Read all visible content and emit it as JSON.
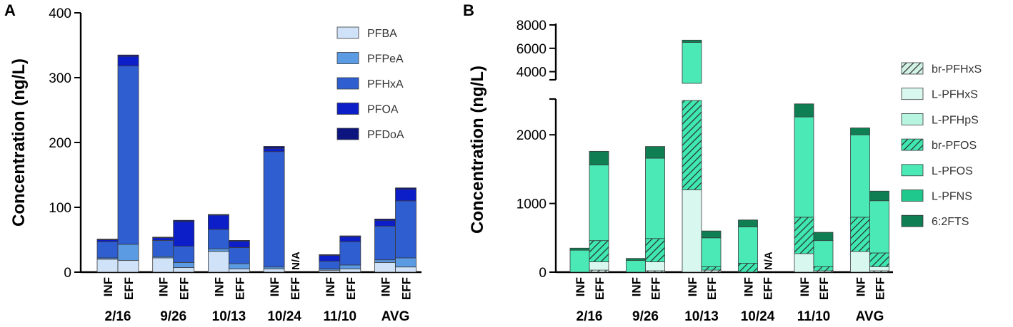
{
  "chart_data": [
    {
      "panel": "A",
      "type": "bar",
      "stacked": true,
      "ylabel": "Concentration (ng/L)",
      "ylim": [
        0,
        400
      ],
      "yticks": [
        0,
        100,
        200,
        300,
        400
      ],
      "groups": [
        "2/16",
        "9/26",
        "10/13",
        "10/24",
        "11/10",
        "AVG"
      ],
      "subcategories": [
        "INF",
        "EFF"
      ],
      "na_label": "N/A",
      "legend": {
        "position": "top-right"
      },
      "series": [
        {
          "name": "PFBA",
          "color": "#cfe2f7",
          "values": [
            [
              20,
              18
            ],
            [
              22,
              7
            ],
            [
              32,
              5
            ],
            [
              5,
              null
            ],
            [
              3,
              5
            ],
            [
              15,
              8
            ]
          ]
        },
        {
          "name": "PFPeA",
          "color": "#5b9be3",
          "values": [
            [
              2,
              25
            ],
            [
              2,
              8
            ],
            [
              4,
              8
            ],
            [
              3,
              null
            ],
            [
              2,
              6
            ],
            [
              4,
              14
            ]
          ]
        },
        {
          "name": "PFHxA",
          "color": "#2f5ed1",
          "values": [
            [
              25,
              275
            ],
            [
              25,
              25
            ],
            [
              30,
              25
            ],
            [
              178,
              null
            ],
            [
              12,
              36
            ],
            [
              52,
              88
            ]
          ]
        },
        {
          "name": "PFOA",
          "color": "#0c1ec7",
          "values": [
            [
              3,
              15
            ],
            [
              4,
              38
            ],
            [
              22,
              10
            ],
            [
              5,
              null
            ],
            [
              9,
              8
            ],
            [
              9,
              18
            ]
          ]
        },
        {
          "name": "PFDoA",
          "color": "#0c1480",
          "values": [
            [
              1,
              2
            ],
            [
              1,
              2
            ],
            [
              1,
              1
            ],
            [
              3,
              null
            ],
            [
              1,
              1
            ],
            [
              2,
              2
            ]
          ]
        }
      ]
    },
    {
      "panel": "B",
      "type": "bar",
      "stacked": true,
      "ylabel": "Concentration (ng/L)",
      "y_axis_break": {
        "lower_range": [
          0,
          2500
        ],
        "upper_range": [
          3000,
          8000
        ]
      },
      "yticks_lower": [
        0,
        1000,
        2000
      ],
      "yticks_upper": [
        4000,
        6000,
        8000
      ],
      "groups": [
        "2/16",
        "9/26",
        "10/13",
        "10/24",
        "11/10",
        "AVG"
      ],
      "subcategories": [
        "INF",
        "EFF"
      ],
      "na_label": "N/A",
      "legend": {
        "position": "right"
      },
      "series": [
        {
          "name": "br-PFHxS",
          "color": "#d2f2e6",
          "hatched": true,
          "values": [
            [
              0,
              30
            ],
            [
              0,
              20
            ],
            [
              0,
              30
            ],
            [
              0,
              null
            ],
            [
              0,
              20
            ],
            [
              0,
              20
            ]
          ]
        },
        {
          "name": "L-PFHxS",
          "color": "#d8f7ee",
          "values": [
            [
              0,
              120
            ],
            [
              0,
              130
            ],
            [
              1200,
              0
            ],
            [
              0,
              null
            ],
            [
              270,
              0
            ],
            [
              300,
              60
            ]
          ]
        },
        {
          "name": "L-PFHpS",
          "color": "#b8f5e0",
          "values": [
            [
              0,
              0
            ],
            [
              0,
              0
            ],
            [
              0,
              0
            ],
            [
              0,
              null
            ],
            [
              0,
              0
            ],
            [
              0,
              0
            ]
          ]
        },
        {
          "name": "br-PFOS",
          "color": "#3ee8b0",
          "hatched": true,
          "values": [
            [
              0,
              310
            ],
            [
              0,
              340
            ],
            [
              1800,
              50
            ],
            [
              130,
              null
            ],
            [
              530,
              60
            ],
            [
              500,
              200
            ]
          ]
        },
        {
          "name": "L-PFOS",
          "color": "#4ae9b5",
          "values": [
            [
              320,
              1100
            ],
            [
              170,
              1170
            ],
            [
              3500,
              420
            ],
            [
              530,
              null
            ],
            [
              1460,
              380
            ],
            [
              1200,
              760
            ]
          ]
        },
        {
          "name": "L-PFNS",
          "color": "#1fc88c",
          "values": [
            [
              0,
              0
            ],
            [
              0,
              0
            ],
            [
              0,
              0
            ],
            [
              0,
              null
            ],
            [
              0,
              0
            ],
            [
              0,
              0
            ]
          ]
        },
        {
          "name": "6:2FTS",
          "color": "#0f7e52",
          "values": [
            [
              30,
              200
            ],
            [
              30,
              170
            ],
            [
              200,
              100
            ],
            [
              100,
              null
            ],
            [
              190,
              120
            ],
            [
              100,
              140
            ]
          ]
        }
      ]
    }
  ]
}
